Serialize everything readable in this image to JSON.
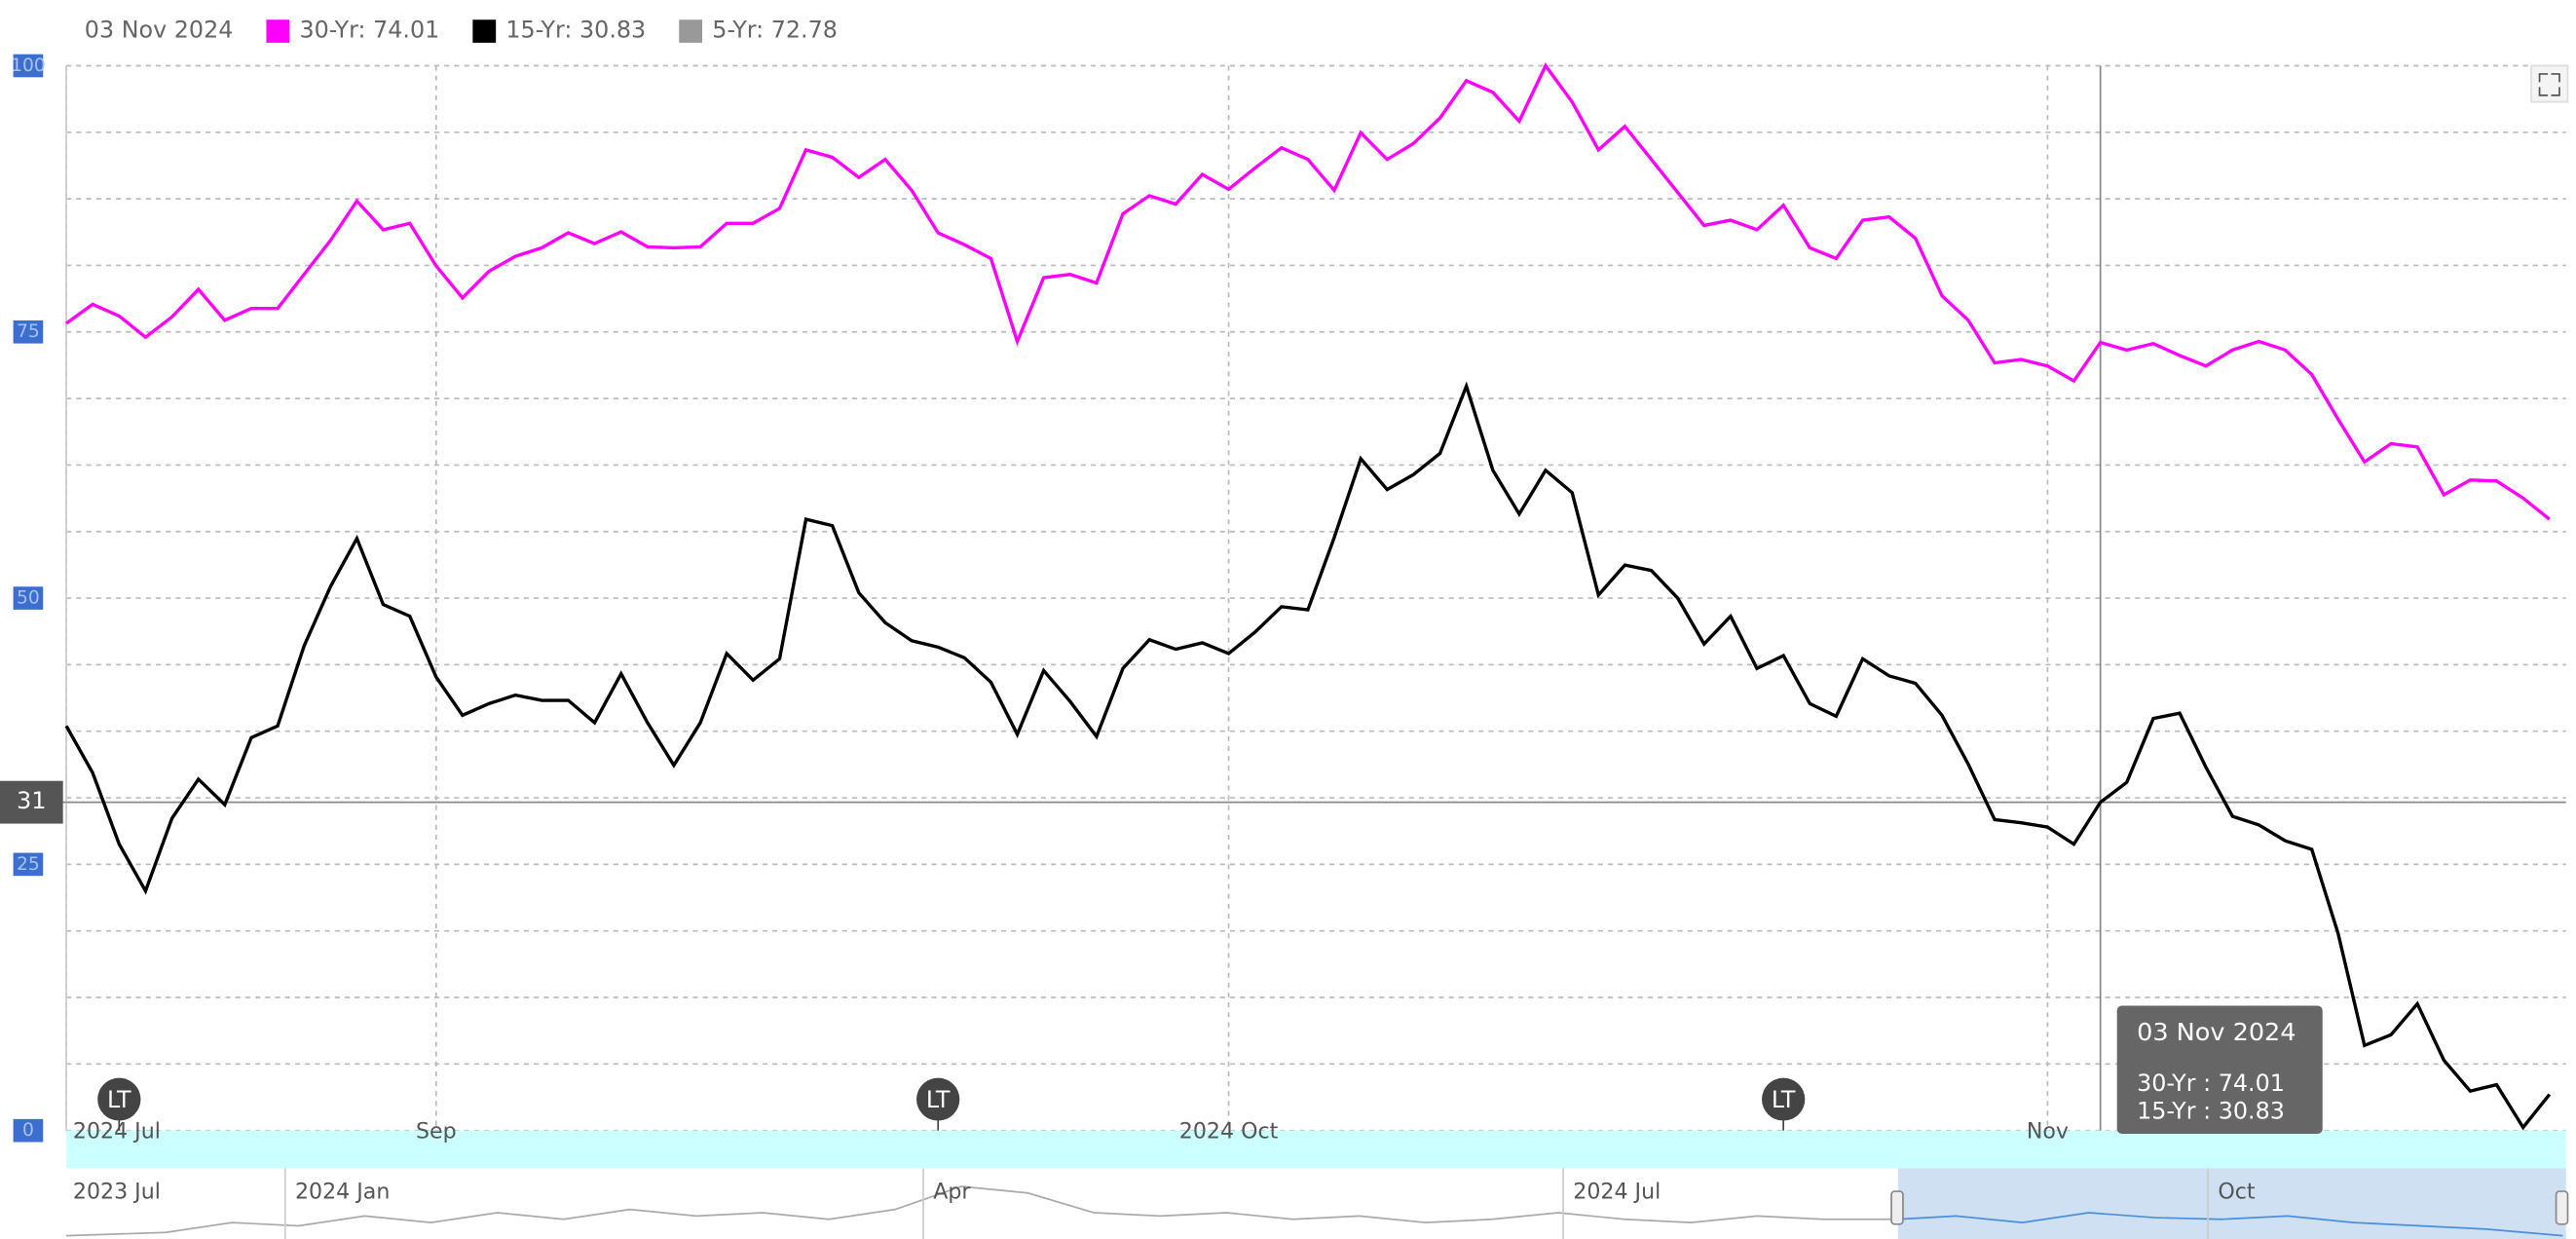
{
  "chart_data": {
    "type": "line",
    "legend": [
      {
        "label": "03 Nov 2024"
      },
      {
        "label": "30-Yr: 74.01",
        "color": "#ff00ff"
      },
      {
        "label": "15-Yr: 30.83",
        "color": "#000000"
      },
      {
        "label": "5-Yr: 72.78",
        "color": "#999999"
      }
    ],
    "categories": [
      "2024 Jul",
      null,
      null,
      null,
      null,
      null,
      null,
      null,
      null,
      null,
      null,
      null,
      null,
      null,
      "Sep",
      null,
      null,
      null,
      null,
      null,
      null,
      null,
      null,
      null,
      null,
      null,
      null,
      null,
      null,
      null,
      null,
      null,
      null,
      null,
      null,
      null,
      null,
      null,
      null,
      null,
      null,
      null,
      null,
      null,
      "2024 Oct",
      null,
      null,
      null,
      null,
      null,
      null,
      null,
      null,
      null,
      null,
      null,
      null,
      null,
      null,
      null,
      null,
      null,
      null,
      null,
      null,
      null,
      null,
      null,
      null,
      null,
      null,
      null,
      null,
      null,
      null,
      "Nov",
      null,
      null,
      null,
      null,
      null,
      null,
      null,
      null,
      null,
      null,
      null,
      null,
      null,
      null,
      null,
      null,
      null,
      null,
      null
    ],
    "series": [
      {
        "name": "30-Yr",
        "color": "#ff00ff",
        "values": [
          75.8,
          77.6,
          76.5,
          74.5,
          76.4,
          79.0,
          76.1,
          77.2,
          77.2,
          80.4,
          83.6,
          87.3,
          84.6,
          85.2,
          81.2,
          78.2,
          80.7,
          82.1,
          82.9,
          84.3,
          83.3,
          84.4,
          83.0,
          82.9,
          83.0,
          85.2,
          85.2,
          86.6,
          92.1,
          91.4,
          89.5,
          91.2,
          88.3,
          84.3,
          83.2,
          81.9,
          74.1,
          80.1,
          80.4,
          79.6,
          86.1,
          87.8,
          87.0,
          89.8,
          88.4,
          90.4,
          92.3,
          91.2,
          88.3,
          93.7,
          91.2,
          92.7,
          95.1,
          98.6,
          97.5,
          94.8,
          100,
          96.6,
          92.1,
          94.3,
          91.2,
          88.1,
          85.0,
          85.5,
          84.6,
          86.9,
          82.9,
          81.9,
          85.5,
          85.8,
          83.8,
          78.4,
          76.1,
          72.1,
          72.4,
          71.8,
          70.4,
          74.01,
          73.3,
          73.9,
          72.8,
          71.8,
          73.3,
          74.1,
          73.3,
          71.0,
          66.8,
          62.8,
          64.5,
          64.2,
          59.7,
          61.1,
          61.0,
          59.4,
          57.4
        ]
      },
      {
        "name": "15-Yr",
        "color": "#000000",
        "values": [
          38.0,
          33.6,
          26.9,
          22.5,
          29.3,
          33.0,
          30.6,
          36.9,
          38.0,
          45.5,
          51.1,
          55.6,
          49.4,
          48.3,
          42.6,
          39.0,
          40.1,
          40.9,
          40.4,
          40.4,
          38.3,
          42.9,
          38.3,
          34.3,
          38.3,
          44.8,
          42.3,
          44.3,
          57.4,
          56.8,
          50.5,
          47.7,
          46.0,
          45.4,
          44.4,
          42.1,
          37.2,
          43.2,
          40.3,
          37.0,
          43.4,
          46.1,
          45.2,
          45.8,
          44.8,
          46.8,
          49.2,
          48.9,
          55.7,
          63.1,
          60.2,
          61.6,
          63.6,
          69.9,
          62.0,
          57.9,
          62.0,
          59.9,
          50.3,
          53.1,
          52.6,
          50.0,
          45.7,
          48.3,
          43.4,
          44.6,
          40.1,
          38.9,
          44.3,
          42.7,
          42.0,
          39.0,
          34.4,
          29.2,
          28.9,
          28.5,
          26.9,
          30.83,
          32.7,
          38.7,
          39.2,
          34.1,
          29.5,
          28.7,
          27.2,
          26.4,
          18.5,
          8.0,
          9.0,
          11.9,
          6.6,
          3.7,
          4.3,
          0.3,
          3.4
        ]
      }
    ],
    "ylim": [
      0,
      100
    ],
    "yticks": [
      0,
      25,
      50,
      75,
      100
    ],
    "minor_yticks": [
      6.25,
      12.5,
      18.75,
      31.25,
      37.5,
      43.75,
      56.25,
      62.5,
      68.75,
      81.25,
      87.5,
      93.75
    ],
    "grid": true,
    "crosshair": {
      "index": 77,
      "y": {
        "value": 30.83,
        "label": "31"
      }
    },
    "annotations": [
      {
        "index": 2,
        "text": "LT"
      },
      {
        "index": 33,
        "text": "LT"
      },
      {
        "index": 65,
        "text": "LT"
      }
    ],
    "tooltip": {
      "index": 77,
      "title": "03 Nov 2024",
      "lines": [
        "30-Yr : 74.01",
        "15-Yr : 30.83"
      ]
    },
    "navigator": {
      "labels": [
        "2023 Jul",
        "2024 Jan",
        "Apr",
        "2024 Jul",
        "Oct"
      ]
    }
  }
}
